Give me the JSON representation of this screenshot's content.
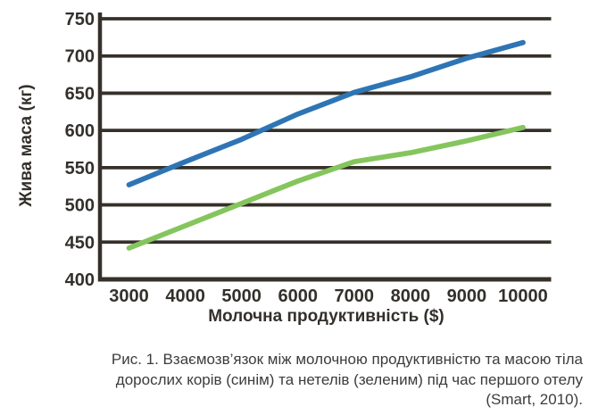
{
  "chart_data": {
    "type": "line",
    "title": "",
    "x_categories": [
      "3000",
      "4000",
      "5000",
      "6000",
      "7000",
      "8000",
      "9000",
      "10000"
    ],
    "series": [
      {
        "name": "дорослі корови (синім)",
        "color": "#2e75b5",
        "values": [
          527,
          558,
          588,
          622,
          651,
          672,
          697,
          718
        ]
      },
      {
        "name": "нетелі (зеленим)",
        "color": "#85c55d",
        "values": [
          442,
          472,
          502,
          532,
          558,
          570,
          586,
          604
        ]
      }
    ],
    "xlabel": "Молочна продуктивність ($)",
    "ylabel": "Жива маса (кг)",
    "ylim": [
      400,
      750
    ],
    "y_ticks": [
      750,
      700,
      650,
      600,
      550,
      500,
      450,
      400
    ],
    "grid": "horizontal",
    "legend": "none",
    "colors": {
      "grid": "#36302a",
      "tick_text": "#33302c"
    }
  },
  "caption": {
    "lines": [
      "Рис. 1. Взаємозв’язок між молочною продуктивністю та масою тіла",
      "дорослих корів (синім) та нетелів (зеленим) під час першого отелу",
      "(Smart, 2010)."
    ],
    "text": "Рис. 1. Взаємозв’язок між молочною продуктивністю та масою тіла дорослих корів (синім) та нетелів (зеленим) під час першого отелу (Smart, 2010)."
  }
}
